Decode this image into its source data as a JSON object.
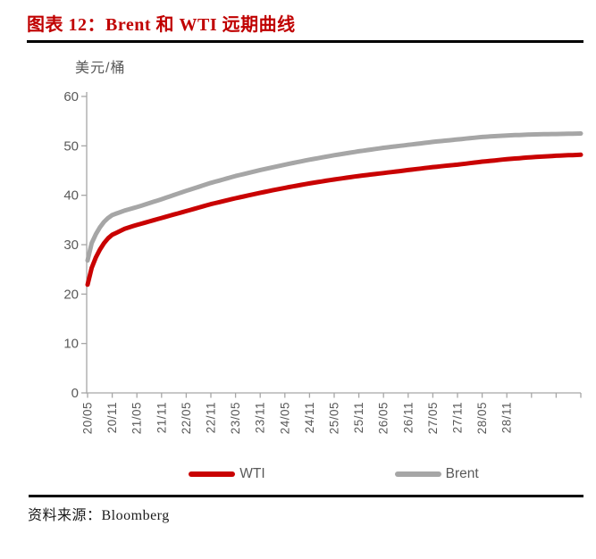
{
  "header": {
    "title": "图表 12：Brent 和 WTI 远期曲线"
  },
  "source": {
    "label": "资料来源：Bloomberg"
  },
  "colors": {
    "title_red": "#C00000",
    "wti_red": "#C90202",
    "brent_gray": "#A6A6A6",
    "axis_gray": "#A6A6A6",
    "tick_label_gray": "#595959",
    "divider_black": "#000000"
  },
  "chart_data": {
    "type": "line",
    "title": "Brent 和 WTI 远期曲线",
    "ylabel": "美元/桶",
    "xlabel": "",
    "ylim": [
      0,
      60
    ],
    "y_ticks": [
      0,
      10,
      20,
      30,
      40,
      50,
      60
    ],
    "grid": false,
    "legend_position": "bottom",
    "x_unit": "months_from_2020_05",
    "x_span_months": 120,
    "x_label_interval_months": 6,
    "x_tick_labels": [
      "20/05",
      "20/11",
      "21/05",
      "21/11",
      "22/05",
      "22/11",
      "23/05",
      "23/11",
      "24/05",
      "24/11",
      "25/05",
      "25/11",
      "26/05",
      "26/11",
      "27/05",
      "27/11",
      "28/05",
      "28/11"
    ],
    "series": [
      {
        "name": "WTI",
        "color": "#C90202",
        "points": [
          [
            0,
            21.9
          ],
          [
            1,
            25.3
          ],
          [
            2,
            27.4
          ],
          [
            3,
            29.0
          ],
          [
            4,
            30.3
          ],
          [
            5,
            31.3
          ],
          [
            6,
            32.0
          ],
          [
            9,
            33.2
          ],
          [
            12,
            34.0
          ],
          [
            18,
            35.4
          ],
          [
            24,
            36.8
          ],
          [
            30,
            38.2
          ],
          [
            36,
            39.4
          ],
          [
            42,
            40.5
          ],
          [
            48,
            41.5
          ],
          [
            54,
            42.4
          ],
          [
            60,
            43.2
          ],
          [
            66,
            43.9
          ],
          [
            72,
            44.5
          ],
          [
            78,
            45.1
          ],
          [
            84,
            45.7
          ],
          [
            90,
            46.2
          ],
          [
            96,
            46.8
          ],
          [
            102,
            47.3
          ],
          [
            108,
            47.7
          ],
          [
            114,
            48.0
          ],
          [
            120,
            48.2
          ]
        ]
      },
      {
        "name": "Brent",
        "color": "#A6A6A6",
        "points": [
          [
            0,
            26.8
          ],
          [
            1,
            30.3
          ],
          [
            2,
            32.1
          ],
          [
            3,
            33.5
          ],
          [
            4,
            34.6
          ],
          [
            5,
            35.4
          ],
          [
            6,
            36.0
          ],
          [
            9,
            36.9
          ],
          [
            12,
            37.6
          ],
          [
            18,
            39.2
          ],
          [
            24,
            40.9
          ],
          [
            30,
            42.5
          ],
          [
            36,
            43.9
          ],
          [
            42,
            45.1
          ],
          [
            48,
            46.2
          ],
          [
            54,
            47.2
          ],
          [
            60,
            48.1
          ],
          [
            66,
            48.9
          ],
          [
            72,
            49.6
          ],
          [
            78,
            50.2
          ],
          [
            84,
            50.8
          ],
          [
            90,
            51.3
          ],
          [
            96,
            51.8
          ],
          [
            102,
            52.1
          ],
          [
            108,
            52.3
          ],
          [
            114,
            52.4
          ],
          [
            120,
            52.5
          ]
        ]
      }
    ]
  }
}
